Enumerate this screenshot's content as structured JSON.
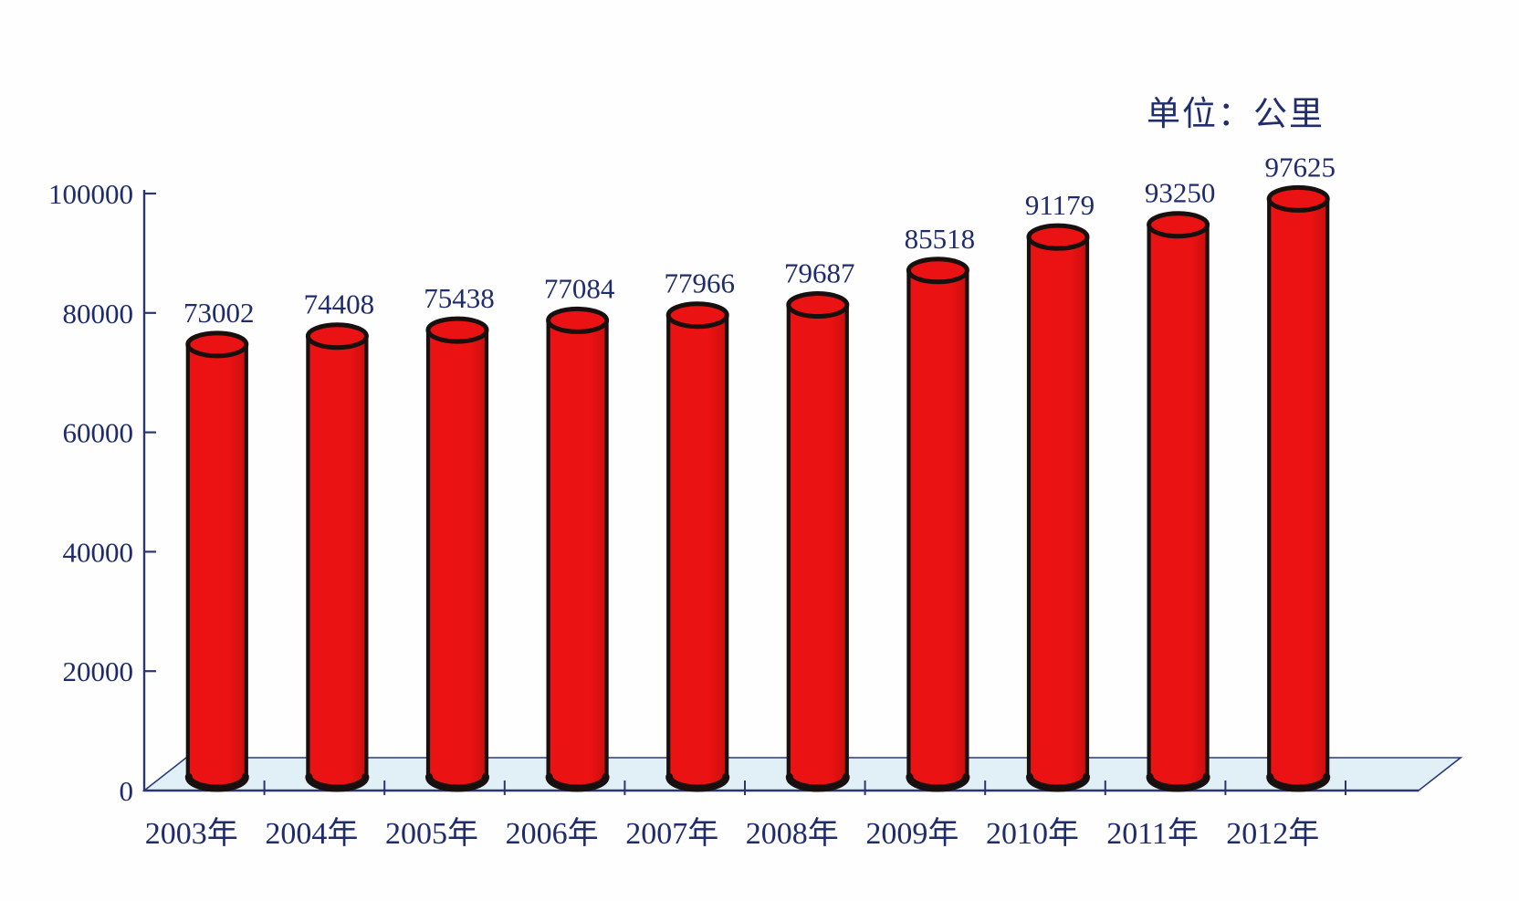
{
  "chart_data": {
    "type": "bar",
    "style": "3d-cylinder",
    "title": "",
    "unit_label": "单位：公里",
    "xlabel": "",
    "ylabel": "",
    "categories": [
      "2003年",
      "2004年",
      "2005年",
      "2006年",
      "2007年",
      "2008年",
      "2009年",
      "2010年",
      "2011年",
      "2012年"
    ],
    "values": [
      73002,
      74408,
      75438,
      77084,
      77966,
      79687,
      85518,
      91179,
      93250,
      97625
    ],
    "ylim": [
      0,
      100000
    ],
    "yticks": [
      0,
      20000,
      40000,
      60000,
      80000,
      100000
    ],
    "grid": false,
    "legend": "none",
    "colors": {
      "bar_fill": "#ea1212",
      "bar_fill_shade": "#c90e0e",
      "bar_outline": "#18100e",
      "floor_fill": "#e1eff7",
      "floor_outline": "#2b3a78",
      "axis": "#2b3570",
      "text": "#1f2b6d"
    }
  }
}
